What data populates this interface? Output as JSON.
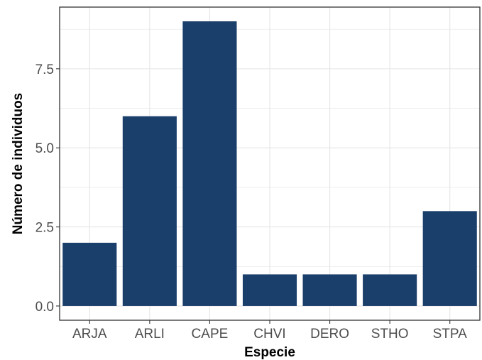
{
  "chart_data": {
    "type": "bar",
    "title": "",
    "xlabel": "Especie",
    "ylabel": "Número de individuos",
    "categories": [
      "ARJA",
      "ARLI",
      "CAPE",
      "CHVI",
      "DERO",
      "STHO",
      "STPA"
    ],
    "values": [
      2,
      6,
      9,
      1,
      1,
      1,
      3
    ],
    "ylim": [
      -0.45,
      9.45
    ],
    "yticks": [
      0,
      2.5,
      5,
      7.5
    ],
    "ytick_labels": [
      "0.0",
      "2.5",
      "5.0",
      "7.5"
    ],
    "grid": true,
    "bar_color": "#1b3f6b",
    "grid_color": "#e5e5e5",
    "panel_border_color": "#333333"
  }
}
